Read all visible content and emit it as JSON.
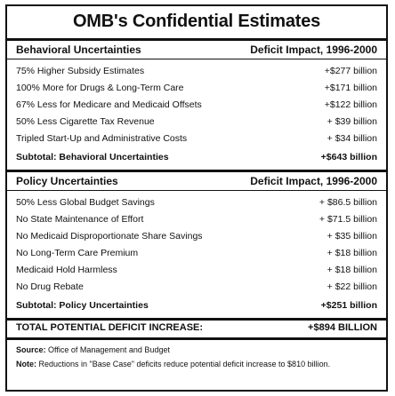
{
  "title": "OMB's Confidential Estimates",
  "behavioral": {
    "header_left": "Behavioral Uncertainties",
    "header_right": "Deficit Impact, 1996-2000",
    "rows": [
      {
        "label": "75% Higher Subsidy Estimates",
        "value": "+$277 billion"
      },
      {
        "label": "100% More for Drugs & Long-Term Care",
        "value": "+$171 billion"
      },
      {
        "label": "67% Less for Medicare and Medicaid Offsets",
        "value": "+$122 billion"
      },
      {
        "label": "50% Less Cigarette Tax Revenue",
        "value": "+ $39 billion"
      },
      {
        "label": "Tripled Start-Up and Administrative Costs",
        "value": "+ $34 billion"
      }
    ],
    "subtotal_label": "Subtotal: Behavioral Uncertainties",
    "subtotal_value": "+$643 billion"
  },
  "policy": {
    "header_left": "Policy Uncertainties",
    "header_right": "Deficit Impact, 1996-2000",
    "rows": [
      {
        "label": "50% Less Global Budget Savings",
        "value": "+ $86.5 billion"
      },
      {
        "label": "No State Maintenance of Effort",
        "value": "+ $71.5 billion"
      },
      {
        "label": "No Medicaid Disproportionate Share Savings",
        "value": "+ $35 billion"
      },
      {
        "label": "No Long-Term Care Premium",
        "value": "+ $18 billion"
      },
      {
        "label": "Medicaid Hold Harmless",
        "value": "+ $18 billion"
      },
      {
        "label": "No Drug Rebate",
        "value": "+ $22 billion"
      }
    ],
    "subtotal_label": "Subtotal: Policy Uncertainties",
    "subtotal_value": "+$251 billion"
  },
  "total": {
    "label": "TOTAL POTENTIAL DEFICIT INCREASE:",
    "value": "+$894 BILLION"
  },
  "footer": {
    "source_label": "Source:",
    "source_text": "Office of Management and Budget",
    "note_label": "Note:",
    "note_text": "Reductions in \"Base Case\" deficits reduce potential deficit increase to $810 billion."
  }
}
